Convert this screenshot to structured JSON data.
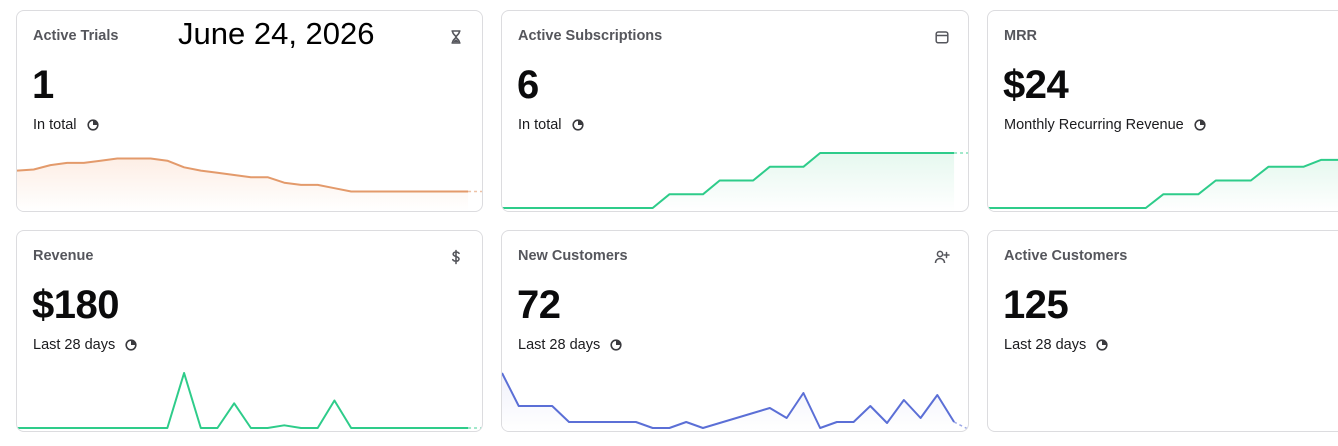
{
  "date_overlay": "June 24, 2026",
  "cards": [
    {
      "title": "Active Trials",
      "value": "1",
      "subtitle": "In total",
      "icon": "hourglass-icon",
      "color": "#e39a6b",
      "fill": "#fdeee5",
      "series": [
        3.4,
        3.5,
        3.9,
        4.1,
        4.1,
        4.3,
        4.5,
        4.5,
        4.5,
        4.3,
        3.7,
        3.4,
        3.2,
        3.0,
        2.8,
        2.8,
        2.3,
        2.1,
        2.1,
        1.8,
        1.5,
        1.5,
        1.5,
        1.5,
        1.5,
        1.5,
        1.5,
        1.5
      ]
    },
    {
      "title": "Active Subscriptions",
      "value": "6",
      "subtitle": "In total",
      "icon": "calendar-icon",
      "color": "#2ecc8a",
      "fill": "#e6f8ef",
      "series": [
        0,
        0,
        0,
        0,
        0,
        0,
        0,
        0,
        0,
        0,
        1,
        1,
        1,
        2,
        2,
        2,
        3,
        3,
        3,
        4,
        4,
        4,
        4,
        4,
        4,
        4,
        4,
        4
      ]
    },
    {
      "title": "MRR",
      "value": "$24",
      "subtitle": "Monthly Recurring Revenue",
      "icon": "",
      "color": "#2ecc8a",
      "fill": "#e6f8ef",
      "series": [
        0,
        0,
        0,
        0,
        0,
        0,
        0,
        0,
        0,
        0,
        1,
        1,
        1,
        2,
        2,
        2,
        3,
        3,
        3,
        3.5,
        3.5,
        3.5
      ]
    },
    {
      "title": "Revenue",
      "value": "$180",
      "subtitle": "Last 28 days",
      "icon": "dollar-icon",
      "color": "#2ecc8a",
      "fill": "",
      "series": [
        0,
        0,
        0,
        0,
        0,
        0,
        0,
        0,
        0,
        0,
        10,
        0,
        0,
        4.5,
        0,
        0,
        0.5,
        0,
        0,
        5,
        0,
        0,
        0,
        0,
        0,
        0,
        0,
        0
      ]
    },
    {
      "title": "New Customers",
      "value": "72",
      "subtitle": "Last 28 days",
      "icon": "user-plus-icon",
      "color": "#5b6fd6",
      "fill": "#f0f1fb",
      "series": [
        5.5,
        2.2,
        2.2,
        2.2,
        0.6,
        0.6,
        0.6,
        0.6,
        0.6,
        0,
        0,
        0.6,
        0,
        0.5,
        1.0,
        1.5,
        2.0,
        1.0,
        3.5,
        0,
        0.6,
        0.6,
        2.2,
        0.5,
        2.8,
        1.0,
        3.3,
        0.6
      ]
    },
    {
      "title": "Active Customers",
      "value": "125",
      "subtitle": "Last 28 days",
      "icon": "",
      "color": "",
      "fill": "",
      "series": []
    }
  ]
}
